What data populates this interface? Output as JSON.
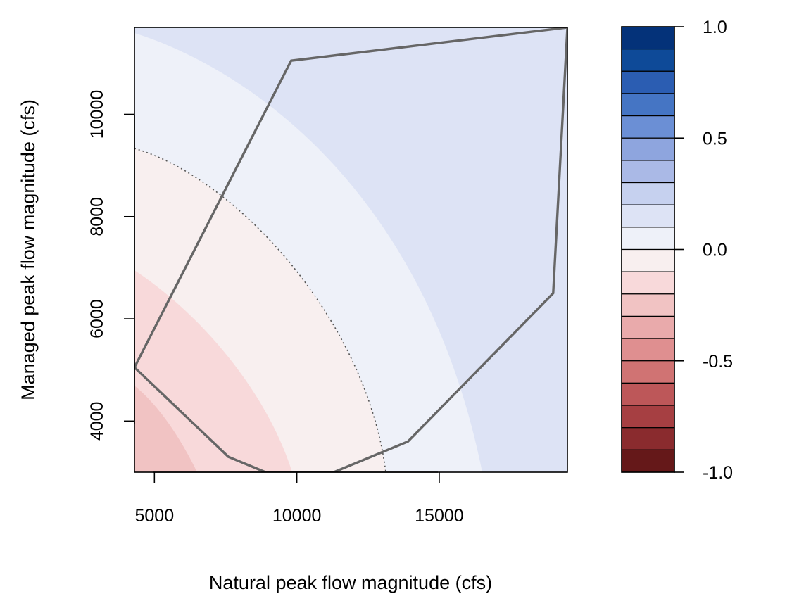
{
  "chart_data": {
    "type": "contour",
    "title": "",
    "xlabel": "Natural peak flow magnitude (cfs)",
    "ylabel": "Managed peak flow magnitude (cfs)",
    "xlim": [
      4300,
      19500
    ],
    "ylim": [
      3000,
      11700
    ],
    "x_ticks": [
      5000,
      10000,
      15000
    ],
    "y_ticks": [
      4000,
      6000,
      8000,
      10000
    ],
    "x_tick_labels": [
      "5000",
      "10000",
      "15000"
    ],
    "y_tick_labels": [
      "4000",
      "6000",
      "8000",
      "10000"
    ],
    "contour_levels": [
      -1.0,
      -0.875,
      -0.75,
      -0.625,
      -0.5,
      -0.375,
      -0.25,
      -0.125,
      0.0,
      0.125,
      0.25,
      0.375,
      0.5,
      0.625,
      0.75,
      0.875,
      1.0
    ],
    "colorbar": {
      "ticks": [
        1.0,
        0.5,
        0.0,
        -0.5,
        -1.0
      ],
      "tick_labels": [
        "1.0",
        "0.5",
        "0.0",
        "-0.5",
        "-1.0"
      ],
      "colors": [
        "#043279",
        "#0e4a98",
        "#2b5db2",
        "#4575c4",
        "#6b8fd5",
        "#8ea5de",
        "#aab9e6",
        "#c6d1ef",
        "#dde3f5",
        "#eef1f9",
        "#f8efef",
        "#f8d9da",
        "#f1c3c3",
        "#e9aaab",
        "#df8f90",
        "#d07373",
        "#bd5759",
        "#a63f42",
        "#8a2b2e",
        "#651819"
      ]
    },
    "field_bands": [
      {
        "level_range": [
          -0.375,
          -0.25
        ],
        "color": "#f1c3c3"
      },
      {
        "level_range": [
          -0.25,
          -0.125
        ],
        "color": "#f8d9da"
      },
      {
        "level_range": [
          -0.125,
          0.0
        ],
        "color": "#f8efef"
      },
      {
        "level_range": [
          0.0,
          0.125
        ],
        "color": "#eef1f9"
      },
      {
        "level_range": [
          0.125,
          0.25
        ],
        "color": "#dde3f5"
      }
    ],
    "zero_contour": {
      "style": "dotted",
      "color": "#555555"
    },
    "hull_polygon": [
      [
        4300,
        5050
      ],
      [
        9800,
        11050
      ],
      [
        19500,
        11700
      ],
      [
        19000,
        6500
      ],
      [
        13900,
        3600
      ],
      [
        11300,
        3000
      ],
      [
        8900,
        3000
      ],
      [
        7600,
        3300
      ],
      [
        4300,
        5050
      ]
    ],
    "hull_color": "#666666"
  }
}
